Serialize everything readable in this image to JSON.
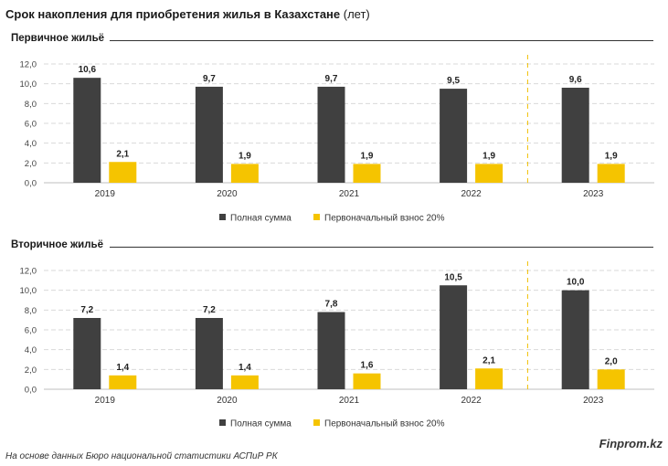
{
  "title": {
    "main": "Срок накопления для приобретения жилья в Казахстане",
    "unit": "(лет)"
  },
  "colors": {
    "full": "#404040",
    "down": "#f5c400",
    "grid": "#d9d9d9",
    "divider": "#f0c000"
  },
  "chart_data": [
    {
      "type": "bar",
      "title": "Первичное жильё",
      "categories": [
        "2019",
        "2020",
        "2021",
        "2022",
        "2023"
      ],
      "series": [
        {
          "name": "Полная сумма",
          "values": [
            10.6,
            9.7,
            9.7,
            9.5,
            9.6
          ],
          "labels": [
            "10,6",
            "9,7",
            "9,7",
            "9,5",
            "9,6"
          ]
        },
        {
          "name": "Первоначальный взнос 20%",
          "values": [
            2.1,
            1.9,
            1.9,
            1.9,
            1.9
          ],
          "labels": [
            "2,1",
            "1,9",
            "1,9",
            "1,9",
            "1,9"
          ]
        }
      ],
      "ylim": [
        0,
        12
      ],
      "yticks": [
        "0,0",
        "2,0",
        "4,0",
        "6,0",
        "8,0",
        "10,0",
        "12,0"
      ],
      "legend": [
        "Полная сумма",
        "Первоначальный взнос 20%"
      ],
      "legend_position": "bottom-center",
      "grid": true
    },
    {
      "type": "bar",
      "title": "Вторичное жильё",
      "categories": [
        "2019",
        "2020",
        "2021",
        "2022",
        "2023"
      ],
      "series": [
        {
          "name": "Полная сумма",
          "values": [
            7.2,
            7.2,
            7.8,
            10.5,
            10.0
          ],
          "labels": [
            "7,2",
            "7,2",
            "7,8",
            "10,5",
            "10,0"
          ]
        },
        {
          "name": "Первоначальный взнос 20%",
          "values": [
            1.4,
            1.4,
            1.6,
            2.1,
            2.0
          ],
          "labels": [
            "1,4",
            "1,4",
            "1,6",
            "2,1",
            "2,0"
          ]
        }
      ],
      "ylim": [
        0,
        12
      ],
      "yticks": [
        "0,0",
        "2,0",
        "4,0",
        "6,0",
        "8,0",
        "10,0",
        "12,0"
      ],
      "legend": [
        "Полная сумма",
        "Первоначальный взнос 20%"
      ],
      "legend_position": "bottom-center",
      "grid": true
    }
  ],
  "footer": {
    "source": "На основе данных Бюро национальной статистики АСПиР РК",
    "brand": "Finprom.kz"
  }
}
